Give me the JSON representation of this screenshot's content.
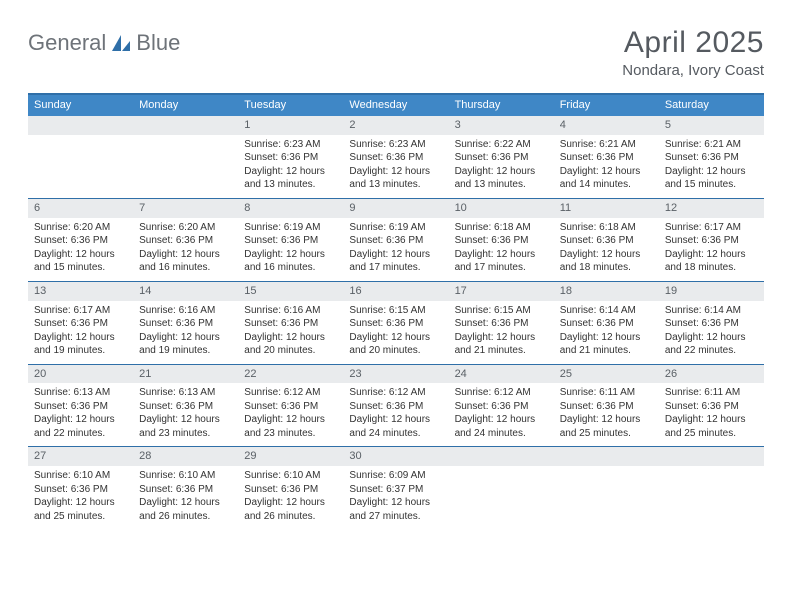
{
  "logo": {
    "part1": "General",
    "part2": "Blue"
  },
  "header": {
    "month_title": "April 2025",
    "location": "Nondara, Ivory Coast"
  },
  "calendar": {
    "days_of_week": [
      "Sunday",
      "Monday",
      "Tuesday",
      "Wednesday",
      "Thursday",
      "Friday",
      "Saturday"
    ],
    "header_bg": "#3f87c6",
    "header_border": "#2f6fa8",
    "daynum_bg": "#e9ebed",
    "weeks": [
      [
        null,
        null,
        {
          "n": "1",
          "sunrise": "Sunrise: 6:23 AM",
          "sunset": "Sunset: 6:36 PM",
          "daylight": "Daylight: 12 hours and 13 minutes."
        },
        {
          "n": "2",
          "sunrise": "Sunrise: 6:23 AM",
          "sunset": "Sunset: 6:36 PM",
          "daylight": "Daylight: 12 hours and 13 minutes."
        },
        {
          "n": "3",
          "sunrise": "Sunrise: 6:22 AM",
          "sunset": "Sunset: 6:36 PM",
          "daylight": "Daylight: 12 hours and 13 minutes."
        },
        {
          "n": "4",
          "sunrise": "Sunrise: 6:21 AM",
          "sunset": "Sunset: 6:36 PM",
          "daylight": "Daylight: 12 hours and 14 minutes."
        },
        {
          "n": "5",
          "sunrise": "Sunrise: 6:21 AM",
          "sunset": "Sunset: 6:36 PM",
          "daylight": "Daylight: 12 hours and 15 minutes."
        }
      ],
      [
        {
          "n": "6",
          "sunrise": "Sunrise: 6:20 AM",
          "sunset": "Sunset: 6:36 PM",
          "daylight": "Daylight: 12 hours and 15 minutes."
        },
        {
          "n": "7",
          "sunrise": "Sunrise: 6:20 AM",
          "sunset": "Sunset: 6:36 PM",
          "daylight": "Daylight: 12 hours and 16 minutes."
        },
        {
          "n": "8",
          "sunrise": "Sunrise: 6:19 AM",
          "sunset": "Sunset: 6:36 PM",
          "daylight": "Daylight: 12 hours and 16 minutes."
        },
        {
          "n": "9",
          "sunrise": "Sunrise: 6:19 AM",
          "sunset": "Sunset: 6:36 PM",
          "daylight": "Daylight: 12 hours and 17 minutes."
        },
        {
          "n": "10",
          "sunrise": "Sunrise: 6:18 AM",
          "sunset": "Sunset: 6:36 PM",
          "daylight": "Daylight: 12 hours and 17 minutes."
        },
        {
          "n": "11",
          "sunrise": "Sunrise: 6:18 AM",
          "sunset": "Sunset: 6:36 PM",
          "daylight": "Daylight: 12 hours and 18 minutes."
        },
        {
          "n": "12",
          "sunrise": "Sunrise: 6:17 AM",
          "sunset": "Sunset: 6:36 PM",
          "daylight": "Daylight: 12 hours and 18 minutes."
        }
      ],
      [
        {
          "n": "13",
          "sunrise": "Sunrise: 6:17 AM",
          "sunset": "Sunset: 6:36 PM",
          "daylight": "Daylight: 12 hours and 19 minutes."
        },
        {
          "n": "14",
          "sunrise": "Sunrise: 6:16 AM",
          "sunset": "Sunset: 6:36 PM",
          "daylight": "Daylight: 12 hours and 19 minutes."
        },
        {
          "n": "15",
          "sunrise": "Sunrise: 6:16 AM",
          "sunset": "Sunset: 6:36 PM",
          "daylight": "Daylight: 12 hours and 20 minutes."
        },
        {
          "n": "16",
          "sunrise": "Sunrise: 6:15 AM",
          "sunset": "Sunset: 6:36 PM",
          "daylight": "Daylight: 12 hours and 20 minutes."
        },
        {
          "n": "17",
          "sunrise": "Sunrise: 6:15 AM",
          "sunset": "Sunset: 6:36 PM",
          "daylight": "Daylight: 12 hours and 21 minutes."
        },
        {
          "n": "18",
          "sunrise": "Sunrise: 6:14 AM",
          "sunset": "Sunset: 6:36 PM",
          "daylight": "Daylight: 12 hours and 21 minutes."
        },
        {
          "n": "19",
          "sunrise": "Sunrise: 6:14 AM",
          "sunset": "Sunset: 6:36 PM",
          "daylight": "Daylight: 12 hours and 22 minutes."
        }
      ],
      [
        {
          "n": "20",
          "sunrise": "Sunrise: 6:13 AM",
          "sunset": "Sunset: 6:36 PM",
          "daylight": "Daylight: 12 hours and 22 minutes."
        },
        {
          "n": "21",
          "sunrise": "Sunrise: 6:13 AM",
          "sunset": "Sunset: 6:36 PM",
          "daylight": "Daylight: 12 hours and 23 minutes."
        },
        {
          "n": "22",
          "sunrise": "Sunrise: 6:12 AM",
          "sunset": "Sunset: 6:36 PM",
          "daylight": "Daylight: 12 hours and 23 minutes."
        },
        {
          "n": "23",
          "sunrise": "Sunrise: 6:12 AM",
          "sunset": "Sunset: 6:36 PM",
          "daylight": "Daylight: 12 hours and 24 minutes."
        },
        {
          "n": "24",
          "sunrise": "Sunrise: 6:12 AM",
          "sunset": "Sunset: 6:36 PM",
          "daylight": "Daylight: 12 hours and 24 minutes."
        },
        {
          "n": "25",
          "sunrise": "Sunrise: 6:11 AM",
          "sunset": "Sunset: 6:36 PM",
          "daylight": "Daylight: 12 hours and 25 minutes."
        },
        {
          "n": "26",
          "sunrise": "Sunrise: 6:11 AM",
          "sunset": "Sunset: 6:36 PM",
          "daylight": "Daylight: 12 hours and 25 minutes."
        }
      ],
      [
        {
          "n": "27",
          "sunrise": "Sunrise: 6:10 AM",
          "sunset": "Sunset: 6:36 PM",
          "daylight": "Daylight: 12 hours and 25 minutes."
        },
        {
          "n": "28",
          "sunrise": "Sunrise: 6:10 AM",
          "sunset": "Sunset: 6:36 PM",
          "daylight": "Daylight: 12 hours and 26 minutes."
        },
        {
          "n": "29",
          "sunrise": "Sunrise: 6:10 AM",
          "sunset": "Sunset: 6:36 PM",
          "daylight": "Daylight: 12 hours and 26 minutes."
        },
        {
          "n": "30",
          "sunrise": "Sunrise: 6:09 AM",
          "sunset": "Sunset: 6:37 PM",
          "daylight": "Daylight: 12 hours and 27 minutes."
        },
        null,
        null,
        null
      ]
    ]
  }
}
